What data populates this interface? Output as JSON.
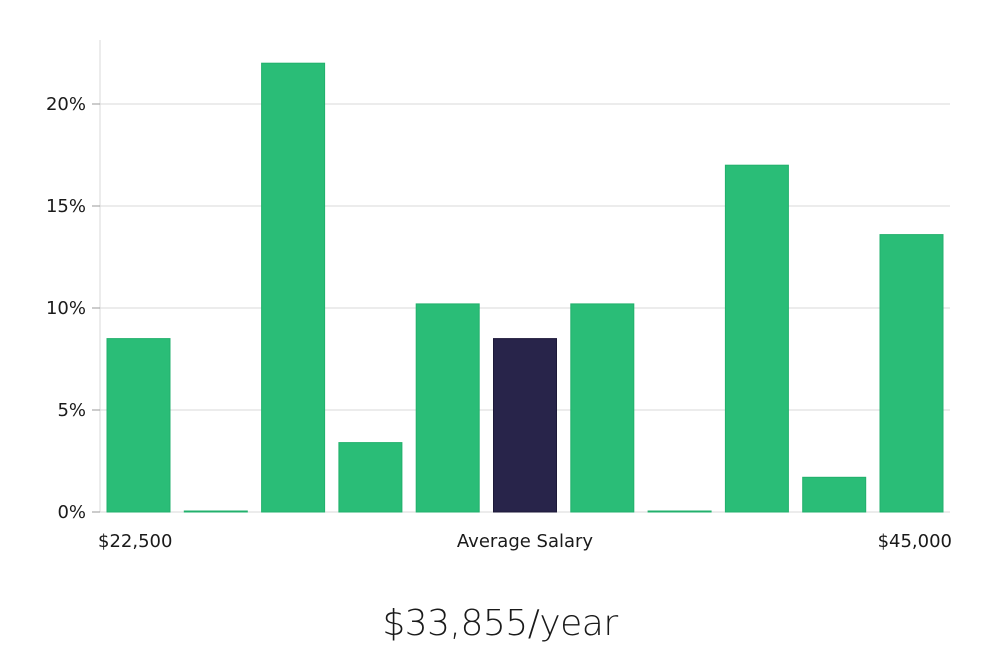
{
  "chart_data": {
    "type": "bar",
    "title": "",
    "xlabel": "Average Salary",
    "ylabel": "",
    "x_min_label": "$22,500",
    "x_max_label": "$45,000",
    "ylim": [
      0,
      23
    ],
    "yticks": [
      0,
      5,
      10,
      15,
      20
    ],
    "ytick_labels": [
      "0%",
      "5%",
      "10%",
      "15%",
      "20%"
    ],
    "values": [
      8.5,
      0.05,
      22.0,
      3.4,
      10.2,
      8.5,
      10.2,
      0.05,
      17.0,
      1.7,
      13.6
    ],
    "highlight_index": 5,
    "grid": true
  },
  "colors": {
    "bar": "#2abd77",
    "bar_highlight": "#28244a",
    "grid": "#d9d9d9",
    "axis": "#d9d9d9"
  },
  "headline": "$33,855/year"
}
